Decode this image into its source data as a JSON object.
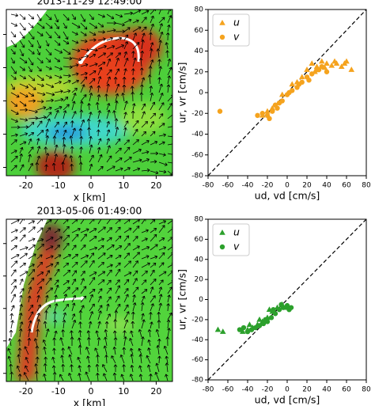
{
  "chart_data": [
    {
      "type": "map",
      "title": "2013-11-29 12:49:00",
      "xlabel": "x [km]",
      "xlim": [
        -26,
        25
      ],
      "xticks": [
        -20,
        -10,
        0,
        10,
        20
      ]
    },
    {
      "type": "scatter",
      "xlabel": "ud, vd [cm/s]",
      "ylabel": "ur, vr [cm/s]",
      "xlim": [
        -80,
        80
      ],
      "ylim": [
        -80,
        80
      ],
      "xticks": [
        -80,
        -60,
        -40,
        -20,
        0,
        20,
        40,
        60,
        80
      ],
      "yticks": [
        -80,
        -60,
        -40,
        -20,
        0,
        20,
        40,
        60,
        80
      ],
      "series": [
        {
          "name": "u",
          "color": "#f5a31e",
          "marker": "triangle",
          "x": [
            20,
            25,
            30,
            35,
            40,
            45,
            50,
            55,
            60,
            65,
            28,
            38,
            48,
            58,
            15,
            10,
            5,
            -5,
            -15,
            -20,
            -25
          ],
          "values": [
            22,
            28,
            25,
            30,
            28,
            26,
            28,
            25,
            30,
            22,
            20,
            24,
            30,
            28,
            15,
            10,
            8,
            -2,
            -15,
            -18,
            -22
          ]
        },
        {
          "name": "v",
          "color": "#f5a31e",
          "marker": "circle",
          "x": [
            -68,
            -30,
            -25,
            -20,
            -15,
            -10,
            -5,
            0,
            5,
            10,
            15,
            20,
            25,
            30,
            35,
            40,
            -18,
            -12,
            -8,
            2,
            12,
            22,
            32
          ],
          "values": [
            -18,
            -22,
            -20,
            -22,
            -18,
            -15,
            -8,
            -2,
            2,
            5,
            10,
            15,
            18,
            22,
            25,
            20,
            -25,
            -12,
            -10,
            0,
            8,
            12,
            22
          ]
        }
      ]
    },
    {
      "type": "map",
      "title": "2013-05-06 01:49:00",
      "xlabel": "x [km]",
      "xlim": [
        -26,
        25
      ],
      "xticks": [
        -20,
        -10,
        0,
        10,
        20
      ]
    },
    {
      "type": "scatter",
      "xlabel": "ud, vd [cm/s]",
      "ylabel": "ur, vr [cm/s]",
      "xlim": [
        -80,
        80
      ],
      "ylim": [
        -80,
        80
      ],
      "xticks": [
        -80,
        -60,
        -40,
        -20,
        0,
        20,
        40,
        60,
        80
      ],
      "yticks": [
        -80,
        -60,
        -40,
        -20,
        0,
        20,
        40,
        60,
        80
      ],
      "series": [
        {
          "name": "u",
          "color": "#2ca02c",
          "marker": "triangle",
          "x": [
            -70,
            -65,
            -45,
            -40,
            -35,
            -30,
            -25,
            -20,
            -15,
            -10,
            -5,
            0,
            -18,
            -28,
            -38
          ],
          "values": [
            -30,
            -32,
            -32,
            -30,
            -28,
            -25,
            -22,
            -18,
            -12,
            -8,
            -5,
            -8,
            -10,
            -20,
            -25
          ]
        },
        {
          "name": "v",
          "color": "#2ca02c",
          "marker": "circle",
          "x": [
            -48,
            -44,
            -40,
            -36,
            -32,
            -28,
            -24,
            -20,
            -16,
            -12,
            -8,
            -4,
            0,
            4,
            -22,
            -14,
            -6,
            2
          ],
          "values": [
            -30,
            -28,
            -32,
            -30,
            -28,
            -26,
            -24,
            -22,
            -18,
            -14,
            -10,
            -8,
            -6,
            -8,
            -20,
            -10,
            -5,
            -10
          ]
        }
      ]
    }
  ]
}
